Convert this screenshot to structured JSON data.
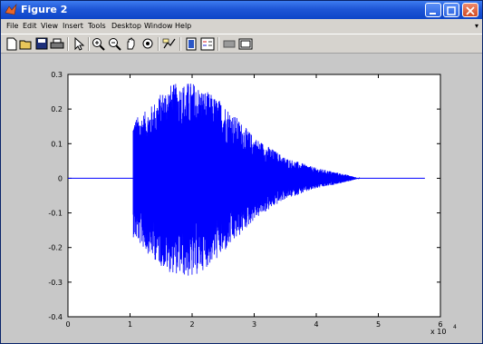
{
  "window": {
    "title": "Figure 2",
    "colors": {
      "titlebar": "#1e56d6",
      "figure_bg": "#c8c8c8",
      "line": "#0000ff"
    }
  },
  "menubar": {
    "items": [
      "File",
      "Edit",
      "View",
      "Insert",
      "Tools",
      "Desktop",
      "Window",
      "Help"
    ]
  },
  "toolbar": {
    "tools": [
      "new-figure-icon",
      "open-file-icon",
      "save-icon",
      "print-icon",
      "edit-plot-arrow-icon",
      "zoom-in-icon",
      "zoom-out-icon",
      "pan-hand-icon",
      "rotate-3d-icon",
      "data-cursor-icon",
      "colorbar-icon",
      "legend-icon",
      "hide-plot-tools-icon",
      "show-plot-tools-icon"
    ]
  },
  "chart_data": {
    "type": "line",
    "title": "",
    "xlabel": "",
    "ylabel": "",
    "xlim": [
      0,
      6
    ],
    "ylim": [
      -0.4,
      0.3
    ],
    "x_ticks": [
      "0",
      "1",
      "2",
      "3",
      "4",
      "5",
      "6"
    ],
    "y_ticks": [
      "-0.4",
      "-0.3",
      "-0.2",
      "-0.1",
      "0",
      "0.1",
      "0.2",
      "0.3"
    ],
    "x_exponent_label": "x 10",
    "x_exponent": "4",
    "series": [
      {
        "description_values": "audio waveform, x in units of 10^4 samples",
        "flat_start": [
          0,
          1.05
        ],
        "signal_range": [
          1.05,
          4.7
        ],
        "flat_end": [
          4.7,
          5.75
        ],
        "envelope_max": [
          [
            1.05,
            0.17
          ],
          [
            1.3,
            0.2
          ],
          [
            1.6,
            0.27
          ],
          [
            2.0,
            0.28
          ],
          [
            2.5,
            0.22
          ],
          [
            3.0,
            0.12
          ],
          [
            3.5,
            0.06
          ],
          [
            4.0,
            0.03
          ],
          [
            4.5,
            0.01
          ],
          [
            4.7,
            0.0
          ]
        ],
        "envelope_min": [
          [
            1.05,
            -0.17
          ],
          [
            1.3,
            -0.22
          ],
          [
            1.6,
            -0.27
          ],
          [
            2.0,
            -0.29
          ],
          [
            2.5,
            -0.22
          ],
          [
            3.0,
            -0.12
          ],
          [
            3.5,
            -0.06
          ],
          [
            4.0,
            -0.03
          ],
          [
            4.5,
            -0.01
          ],
          [
            4.7,
            0.0
          ]
        ]
      }
    ],
    "grid": false
  }
}
